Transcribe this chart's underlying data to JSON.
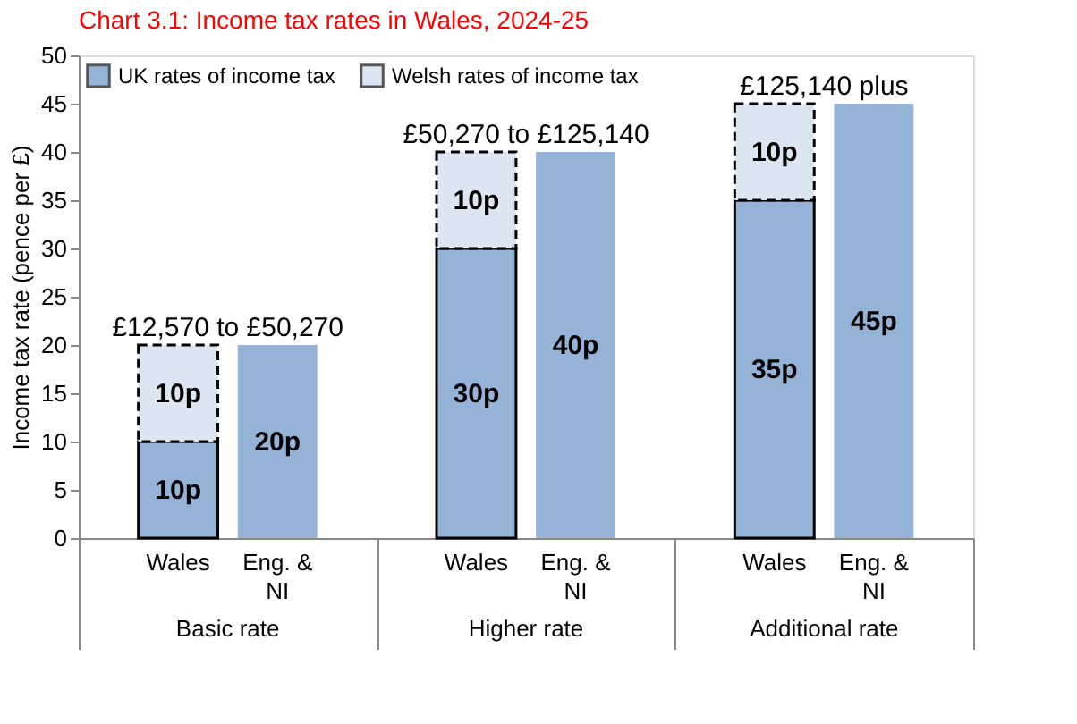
{
  "chart_data": {
    "type": "bar",
    "title": "Chart 3.1: Income tax rates in Wales, 2024-25",
    "ylabel": "Income tax rate (pence per £)",
    "categories": [
      "Wales",
      "Eng. & NI",
      "Wales",
      "Eng. & NI",
      "Wales",
      "Eng. & NI"
    ],
    "stacked": true,
    "series": [
      {
        "name": "UK rates of income tax",
        "color": "#95b3d7",
        "line_style": "solid",
        "values": [
          10,
          20,
          30,
          40,
          35,
          45
        ],
        "value_labels": [
          "10p",
          "20p",
          "30p",
          "40p",
          "35p",
          "45p"
        ]
      },
      {
        "name": "Welsh rates of income tax",
        "color": "#dce6f2",
        "line_style": "dashed",
        "values": [
          10,
          null,
          10,
          null,
          10,
          null
        ],
        "value_labels": [
          "10p",
          null,
          "10p",
          null,
          "10p",
          null
        ]
      }
    ],
    "ylim": [
      0,
      50
    ],
    "yticks": [
      0,
      5,
      10,
      15,
      20,
      25,
      30,
      35,
      40,
      45,
      50
    ],
    "grid": false,
    "legend": "top left",
    "annotations": [
      "£12,570 to £50,270",
      "£50,270 to £125,140",
      "£125,140 plus",
      "Basic rate",
      "Higher rate",
      "Additional rate"
    ]
  }
}
